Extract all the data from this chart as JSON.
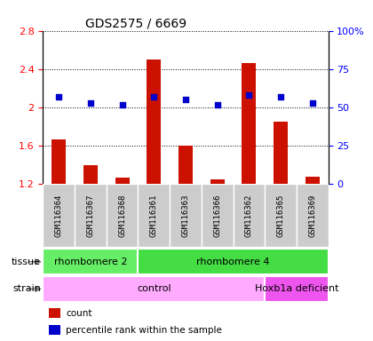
{
  "title": "GDS2575 / 6669",
  "samples": [
    "GSM116364",
    "GSM116367",
    "GSM116368",
    "GSM116361",
    "GSM116363",
    "GSM116366",
    "GSM116362",
    "GSM116365",
    "GSM116369"
  ],
  "counts": [
    1.67,
    1.4,
    1.27,
    2.5,
    1.6,
    1.25,
    2.46,
    1.85,
    1.28
  ],
  "percentile_ranks": [
    57,
    53,
    52,
    57,
    55,
    52,
    58,
    57,
    53
  ],
  "ylim_left": [
    1.2,
    2.8
  ],
  "ylim_right": [
    0,
    100
  ],
  "yticks_left": [
    1.2,
    1.6,
    2.0,
    2.4,
    2.8
  ],
  "ytick_labels_left": [
    "1.2",
    "1.6",
    "2",
    "2.4",
    "2.8"
  ],
  "yticks_right": [
    0,
    25,
    50,
    75,
    100
  ],
  "ytick_labels_right": [
    "0",
    "25",
    "50",
    "75",
    "100%"
  ],
  "bar_color": "#cc1100",
  "dot_color": "#0000cc",
  "bar_bottom": 1.2,
  "tissue_groups": [
    {
      "label": "rhombomere 2",
      "start": 0,
      "end": 3,
      "color": "#66ee66"
    },
    {
      "label": "rhombomere 4",
      "start": 3,
      "end": 9,
      "color": "#44dd44"
    }
  ],
  "strain_groups": [
    {
      "label": "control",
      "start": 0,
      "end": 7,
      "color": "#ffaaff"
    },
    {
      "label": "Hoxb1a deficient",
      "start": 7,
      "end": 9,
      "color": "#ee55ee"
    }
  ],
  "grid_color": "#000000",
  "background_color": "#ffffff",
  "plot_bg": "#ffffff",
  "sample_box_color": "#cccccc",
  "legend_items": [
    {
      "label": "count",
      "color": "#cc1100"
    },
    {
      "label": "percentile rank within the sample",
      "color": "#0000cc"
    }
  ]
}
